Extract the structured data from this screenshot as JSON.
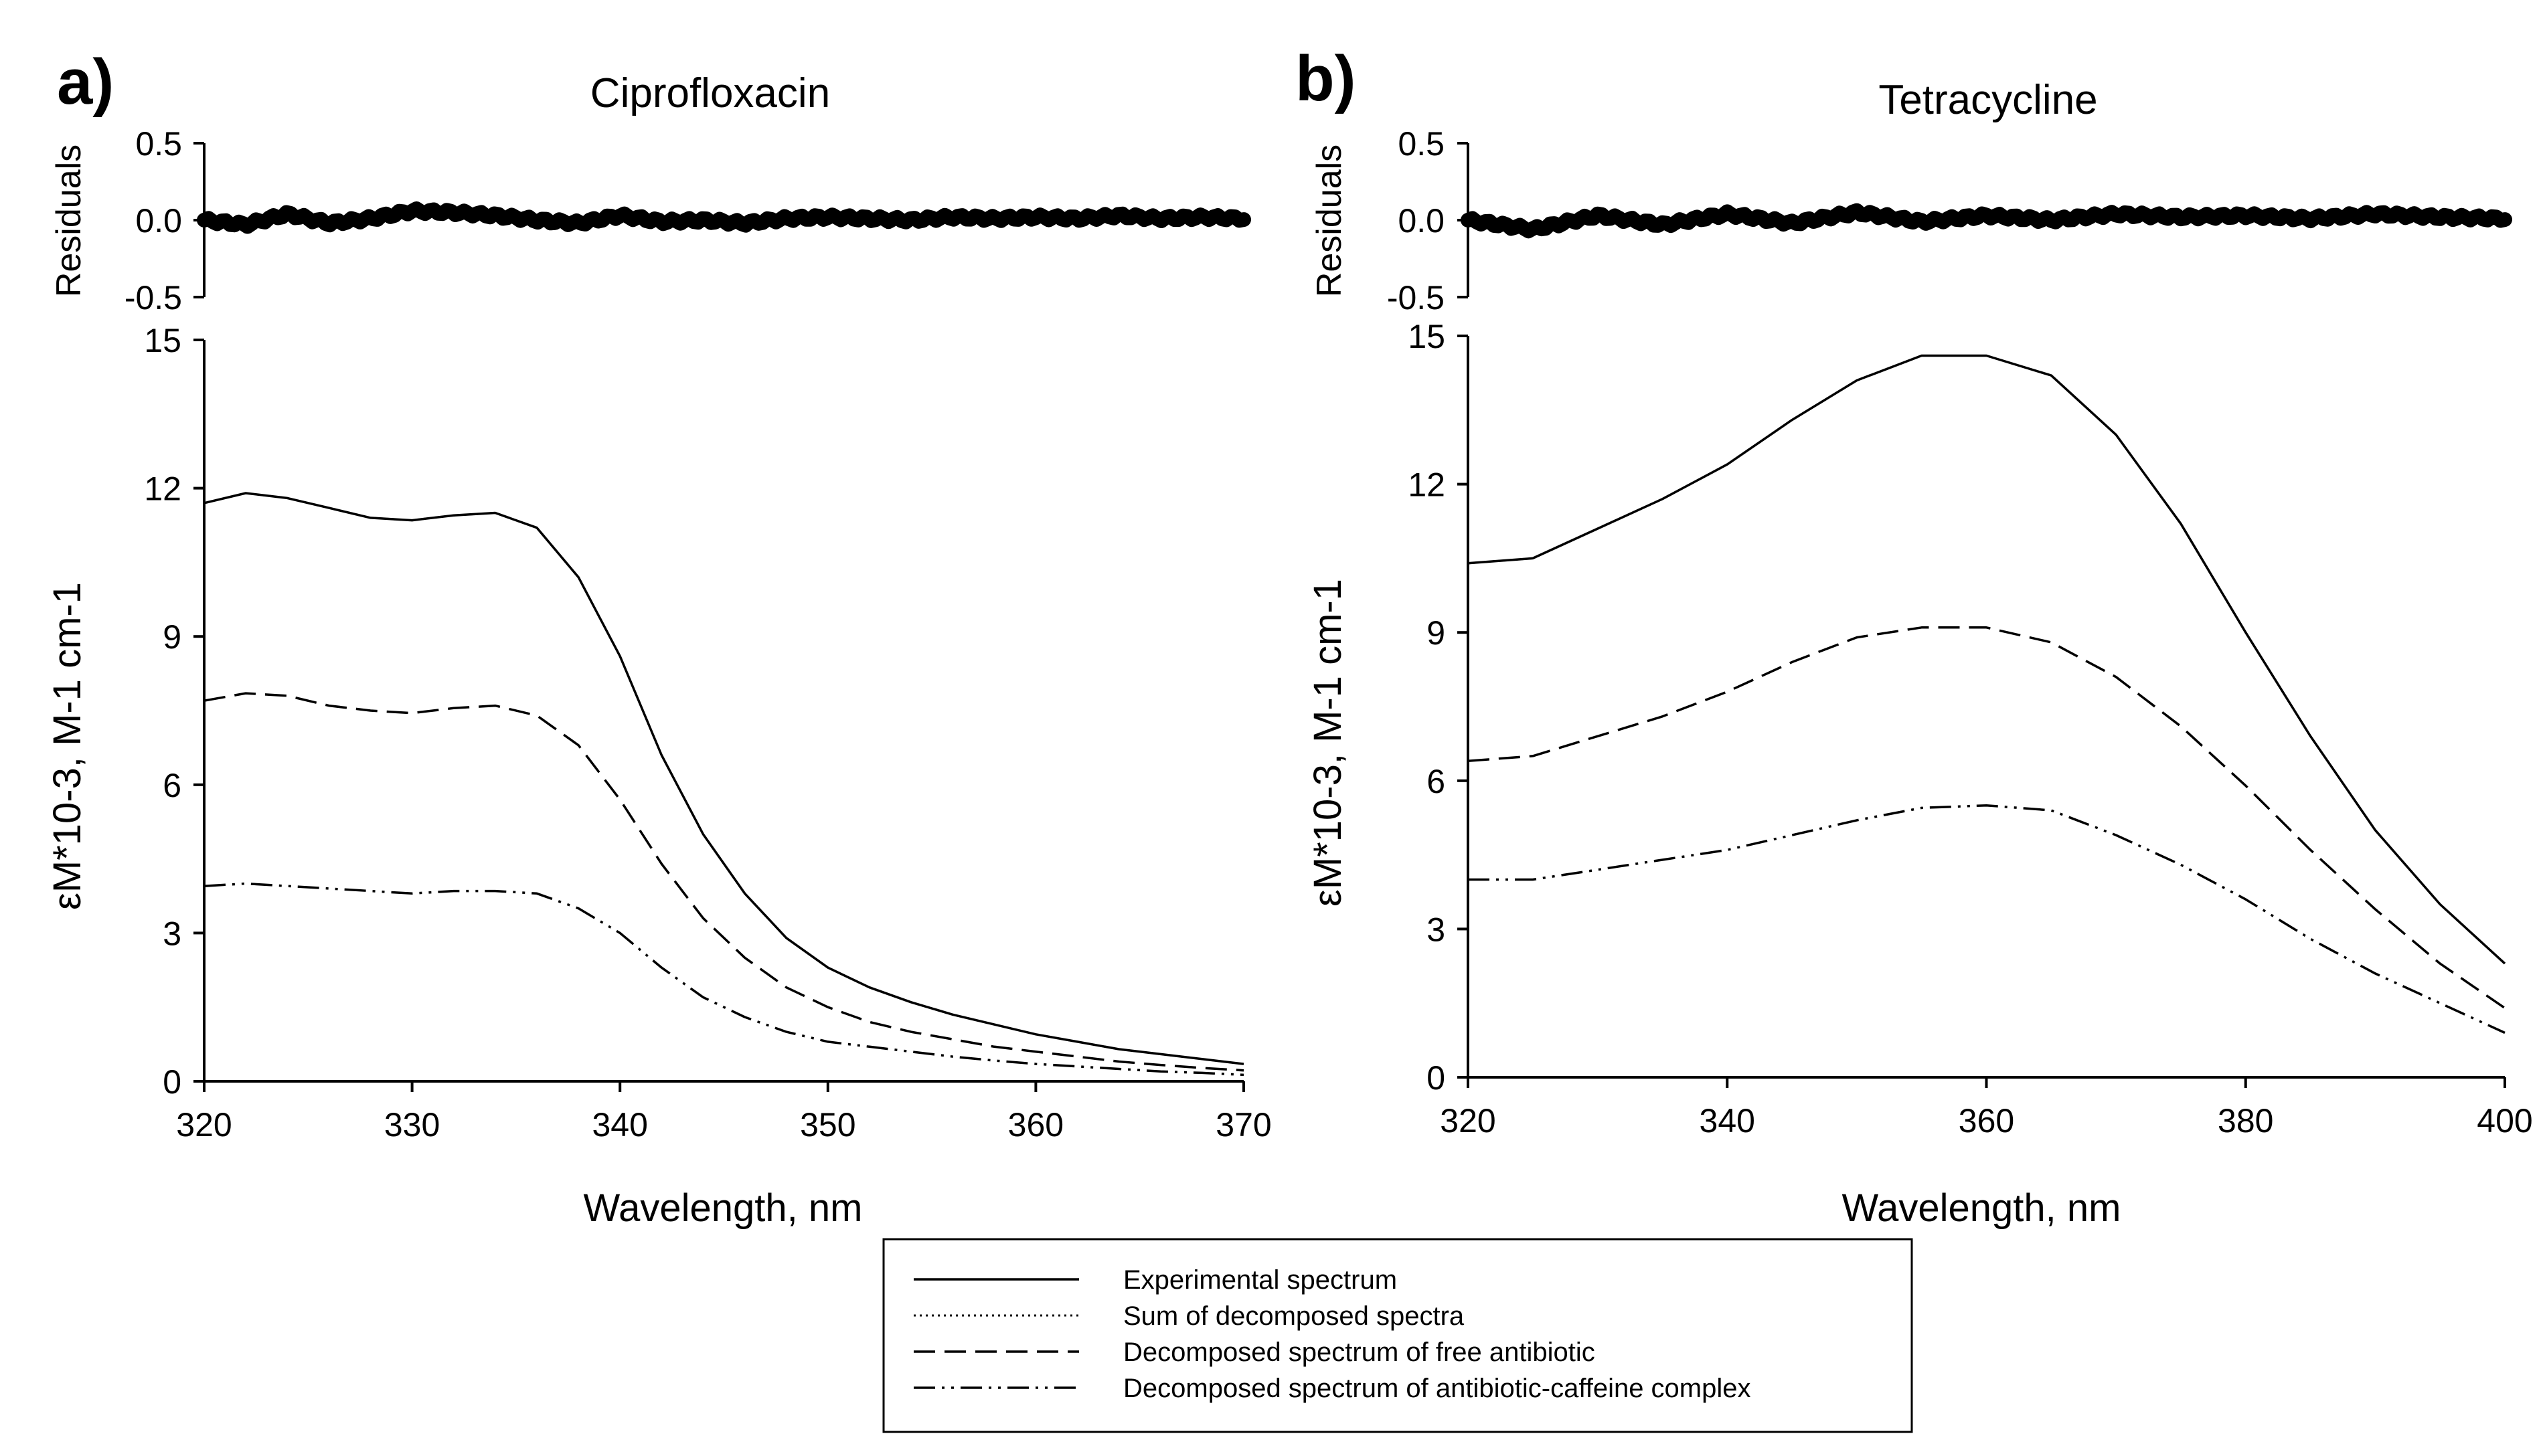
{
  "figure": {
    "legend": [
      {
        "label": "Experimental spectrum",
        "style": "solid"
      },
      {
        "label": "Sum of decomposed spectra",
        "style": "dotted"
      },
      {
        "label": "Decomposed spectrum of free antibiotic",
        "style": "dashed"
      },
      {
        "label": "Decomposed spectrum of antibiotic-caffeine complex",
        "style": "dashdotdot"
      }
    ]
  },
  "chart_data": [
    {
      "panel": "a)",
      "title": "Ciprofloxacin",
      "type": "line",
      "xlabel": "Wavelength, nm",
      "ylabel": "εM*10-3, M-1 cm-1",
      "residuals_label": "Residuals",
      "xlim": [
        320,
        370
      ],
      "xticks": [
        320,
        330,
        340,
        350,
        360,
        370
      ],
      "ylim": [
        0,
        15
      ],
      "yticks": [
        0,
        3,
        6,
        9,
        12,
        15
      ],
      "residuals_ylim": [
        -0.5,
        0.5
      ],
      "residuals_ticks": [
        "-0.5",
        "0.0",
        "0.5"
      ],
      "x": [
        320,
        322,
        324,
        326,
        328,
        330,
        332,
        334,
        336,
        338,
        340,
        342,
        344,
        346,
        348,
        350,
        352,
        354,
        356,
        358,
        360,
        362,
        364,
        366,
        368,
        370
      ],
      "series": [
        {
          "name": "Experimental spectrum",
          "style": "solid",
          "values": [
            11.7,
            11.9,
            11.8,
            11.6,
            11.4,
            11.35,
            11.45,
            11.5,
            11.2,
            10.2,
            8.6,
            6.6,
            5.0,
            3.8,
            2.9,
            2.3,
            1.9,
            1.6,
            1.35,
            1.15,
            0.95,
            0.8,
            0.65,
            0.55,
            0.45,
            0.35
          ]
        },
        {
          "name": "Sum of decomposed spectra",
          "style": "dotted",
          "values": [
            11.7,
            11.9,
            11.8,
            11.6,
            11.4,
            11.35,
            11.45,
            11.5,
            11.2,
            10.2,
            8.6,
            6.6,
            5.0,
            3.8,
            2.9,
            2.3,
            1.9,
            1.6,
            1.35,
            1.15,
            0.95,
            0.8,
            0.65,
            0.55,
            0.45,
            0.35
          ]
        },
        {
          "name": "Decomposed spectrum of free antibiotic",
          "style": "dashed",
          "values": [
            7.7,
            7.85,
            7.8,
            7.6,
            7.5,
            7.45,
            7.55,
            7.6,
            7.4,
            6.8,
            5.7,
            4.4,
            3.3,
            2.5,
            1.9,
            1.5,
            1.2,
            1.0,
            0.85,
            0.7,
            0.6,
            0.5,
            0.4,
            0.33,
            0.27,
            0.22
          ]
        },
        {
          "name": "Decomposed spectrum of antibiotic-caffeine complex",
          "style": "dashdotdot",
          "values": [
            3.95,
            4.0,
            3.95,
            3.9,
            3.85,
            3.8,
            3.85,
            3.85,
            3.8,
            3.5,
            3.0,
            2.3,
            1.7,
            1.3,
            1.0,
            0.8,
            0.7,
            0.6,
            0.5,
            0.42,
            0.35,
            0.3,
            0.25,
            0.2,
            0.17,
            0.13
          ]
        }
      ],
      "residuals": [
        0.0,
        -0.03,
        0.04,
        -0.02,
        0.01,
        0.06,
        0.05,
        0.03,
        0.0,
        -0.02,
        0.03,
        -0.01,
        0.0,
        -0.02,
        0.01,
        0.02,
        0.01,
        0.0,
        0.02,
        0.01,
        0.02,
        0.01,
        0.03,
        0.01,
        0.02,
        0.01
      ]
    },
    {
      "panel": "b)",
      "title": "Tetracycline",
      "type": "line",
      "xlabel": "Wavelength, nm",
      "ylabel": "εM*10-3, M-1 cm-1",
      "residuals_label": "Residuals",
      "xlim": [
        320,
        400
      ],
      "xticks": [
        320,
        340,
        360,
        380,
        400
      ],
      "ylim": [
        0,
        15
      ],
      "yticks": [
        0,
        3,
        6,
        9,
        12,
        15
      ],
      "residuals_ylim": [
        -0.5,
        0.5
      ],
      "residuals_ticks": [
        "-0.5",
        "0.0",
        "0.5"
      ],
      "x": [
        320,
        325,
        330,
        335,
        340,
        345,
        350,
        355,
        360,
        365,
        370,
        375,
        380,
        385,
        390,
        395,
        400
      ],
      "series": [
        {
          "name": "Experimental spectrum",
          "style": "solid",
          "values": [
            10.4,
            10.5,
            11.1,
            11.7,
            12.4,
            13.3,
            14.1,
            14.6,
            14.6,
            14.2,
            13.0,
            11.2,
            9.0,
            6.9,
            5.0,
            3.5,
            2.3
          ]
        },
        {
          "name": "Sum of decomposed spectra",
          "style": "dotted",
          "values": [
            10.4,
            10.5,
            11.1,
            11.7,
            12.4,
            13.3,
            14.1,
            14.6,
            14.6,
            14.2,
            13.0,
            11.2,
            9.0,
            6.9,
            5.0,
            3.5,
            2.3
          ]
        },
        {
          "name": "Decomposed spectrum of free antibiotic",
          "style": "dashed",
          "values": [
            6.4,
            6.5,
            6.9,
            7.3,
            7.8,
            8.4,
            8.9,
            9.1,
            9.1,
            8.8,
            8.1,
            7.1,
            5.9,
            4.6,
            3.4,
            2.3,
            1.4
          ]
        },
        {
          "name": "Decomposed spectrum of antibiotic-caffeine complex",
          "style": "dashdotdot",
          "values": [
            4.0,
            4.0,
            4.2,
            4.4,
            4.6,
            4.9,
            5.2,
            5.45,
            5.5,
            5.4,
            4.9,
            4.3,
            3.6,
            2.8,
            2.1,
            1.5,
            0.9
          ]
        }
      ],
      "residuals": [
        0.0,
        -0.06,
        0.03,
        -0.03,
        0.04,
        -0.02,
        0.05,
        -0.01,
        0.03,
        0.0,
        0.04,
        0.02,
        0.03,
        0.01,
        0.04,
        0.02,
        0.01
      ]
    }
  ]
}
